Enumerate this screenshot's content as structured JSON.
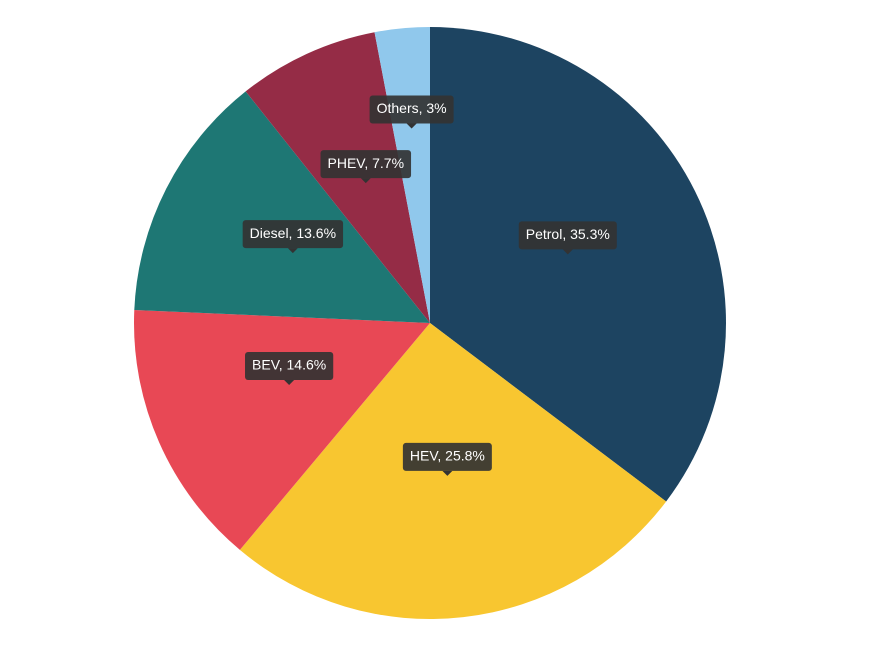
{
  "chart_data": {
    "type": "pie",
    "values": [
      35.3,
      25.8,
      14.6,
      13.6,
      7.7,
      3
    ],
    "value_labels": [
      "Petrol, 35.3%",
      "HEV, 25.8%",
      "BEV, 14.6%",
      "Diesel, 13.6%",
      "PHEV, 7.7%",
      "Others, 3%"
    ],
    "colors": [
      "#1d4461",
      "#f8c630",
      "#e84855",
      "#1e7774",
      "#952c46",
      "#90c8ec"
    ]
  }
}
